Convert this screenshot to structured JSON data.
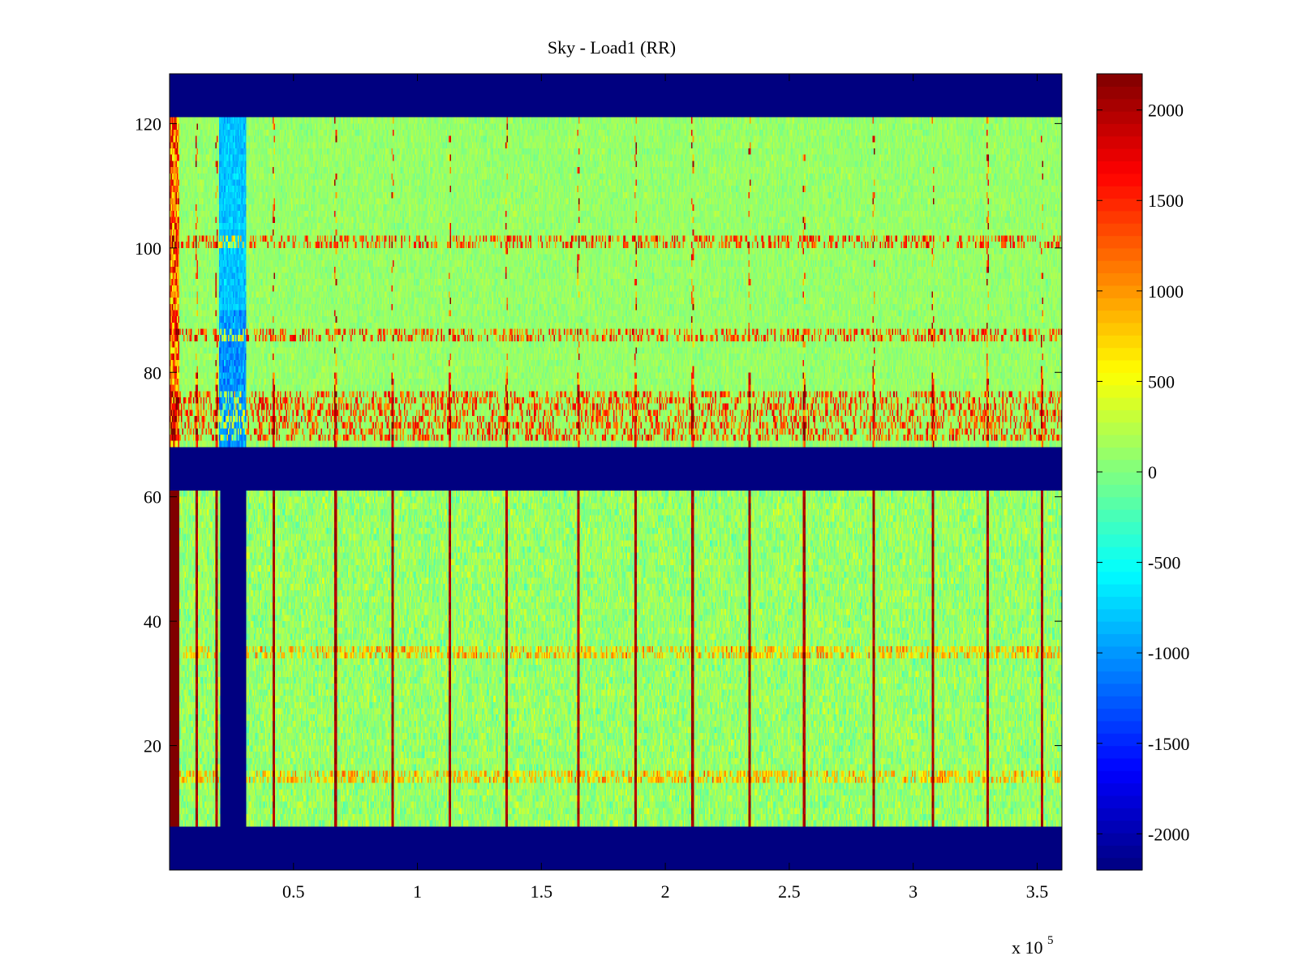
{
  "chart_data": {
    "type": "heatmap",
    "title": "Sky - Load1 (RR)",
    "xlabel": "",
    "ylabel": "",
    "x_multiplier_label": "x 10",
    "x_multiplier_exponent": "5",
    "xlim": [
      0,
      360000
    ],
    "ylim": [
      0,
      128
    ],
    "x_ticks": [
      {
        "value": 50000,
        "label": "0.5"
      },
      {
        "value": 100000,
        "label": "1"
      },
      {
        "value": 150000,
        "label": "1.5"
      },
      {
        "value": 200000,
        "label": "2"
      },
      {
        "value": 250000,
        "label": "2.5"
      },
      {
        "value": 300000,
        "label": "3"
      },
      {
        "value": 350000,
        "label": "3.5"
      }
    ],
    "y_ticks": [
      {
        "value": 20,
        "label": "20"
      },
      {
        "value": 40,
        "label": "40"
      },
      {
        "value": 60,
        "label": "60"
      },
      {
        "value": 80,
        "label": "80"
      },
      {
        "value": 100,
        "label": "100"
      },
      {
        "value": 120,
        "label": "120"
      }
    ],
    "colorbar": {
      "colormap": "jet",
      "clim": [
        -2200,
        2200
      ],
      "ticks": [
        {
          "value": 2000,
          "label": "2000"
        },
        {
          "value": 1500,
          "label": "1500"
        },
        {
          "value": 1000,
          "label": "1000"
        },
        {
          "value": 500,
          "label": "500"
        },
        {
          "value": 0,
          "label": "0"
        },
        {
          "value": -500,
          "label": "-500"
        },
        {
          "value": -1000,
          "label": "-1000"
        },
        {
          "value": -1500,
          "label": "-1500"
        },
        {
          "value": -2000,
          "label": "-2000"
        }
      ]
    },
    "regions": {
      "masked_value": -2200,
      "masked_y_bands": [
        [
          0,
          7
        ],
        [
          61,
          68
        ],
        [
          121,
          128
        ]
      ],
      "upper_band_y": [
        68,
        121
      ],
      "lower_band_y": [
        7,
        61
      ],
      "upper_typical_value": 100,
      "lower_typical_value": 100,
      "noise_amplitude_upper": 250,
      "noise_amplitude_lower": 450,
      "low_region_x": [
        20000,
        31000
      ],
      "low_region_value_upper": -800,
      "lower_masked_gap_x": [
        20500,
        31000
      ],
      "left_edge_hot_x": [
        0,
        4000
      ],
      "left_edge_hot_value": 2200
    },
    "vertical_streaks_x": [
      11000,
      19000,
      42000,
      67000,
      90000,
      113000,
      136000,
      165000,
      188000,
      211000,
      234000,
      256000,
      284000,
      308000,
      330000,
      352000
    ],
    "streak_value": 2200,
    "horizontal_bright_rows_upper": [
      70,
      72,
      74,
      76,
      86,
      101
    ],
    "horizontal_bright_rows_lower": [
      15,
      35
    ]
  },
  "colors": {
    "masked": "#00008f",
    "background": "#ffffff",
    "axis": "#000000"
  }
}
